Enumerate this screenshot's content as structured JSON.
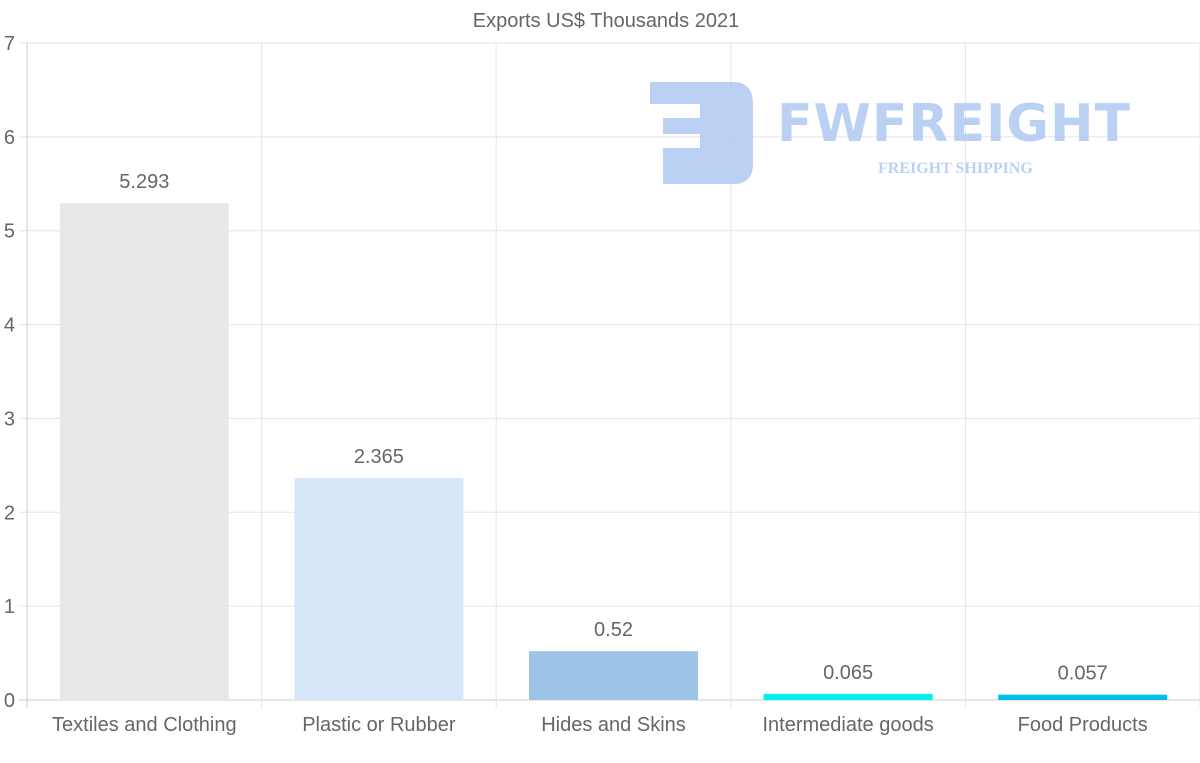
{
  "chart_data": {
    "type": "bar",
    "title": "Exports US$ Thousands 2021",
    "categories": [
      "Textiles and Clothing",
      "Plastic or Rubber",
      "Hides and Skins",
      "Intermediate goods",
      "Food Products"
    ],
    "values": [
      5.293,
      2.365,
      0.52,
      0.065,
      0.057
    ],
    "data_labels": [
      "5.293",
      "2.365",
      "0.52",
      "0.065",
      "0.057"
    ],
    "colors": [
      "#e8e8e8",
      "#d6e6f9",
      "#9dc3e6",
      "#00f0f0",
      "#00bff0"
    ],
    "xlabel": "",
    "ylabel": "",
    "ylim": [
      0,
      7
    ],
    "yticks": [
      "0",
      "1",
      "2",
      "3",
      "4",
      "5",
      "6",
      "7"
    ],
    "grid": true,
    "legend": "none"
  },
  "watermark": {
    "brand": "FWFREIGHT",
    "tagline": "FREIGHT SHIPPING"
  }
}
